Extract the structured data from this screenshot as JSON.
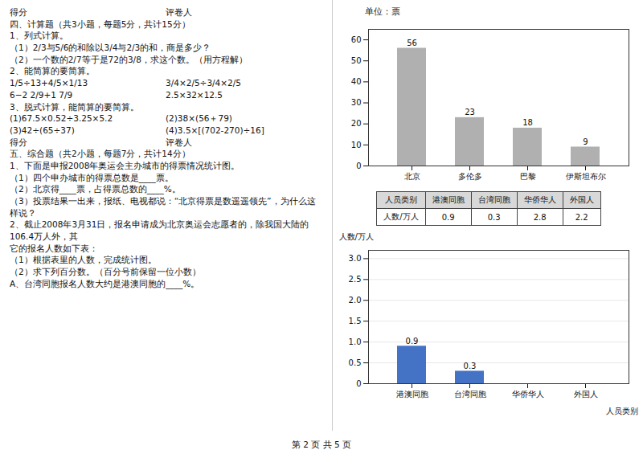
{
  "chart_data": [
    {
      "type": "bar",
      "title": "单位：票",
      "categories": [
        "北京",
        "多伦多",
        "巴黎",
        "伊斯坦布尔"
      ],
      "values": [
        56,
        23,
        18,
        9
      ],
      "color": "#b0b0b0",
      "ylim": [
        0,
        65
      ],
      "yticks": [
        0,
        10,
        20,
        30,
        40,
        50,
        60
      ],
      "data_labels": true,
      "grid": false
    },
    {
      "type": "table",
      "columns": [
        "人员类别",
        "港澳同胞",
        "台湾同胞",
        "华侨华人",
        "外国人"
      ],
      "rows": [
        [
          "人数/万人",
          "0.9",
          "0.3",
          "2.8",
          "2.2"
        ]
      ]
    },
    {
      "type": "bar",
      "ylabel": "人数/万人",
      "xlabel": "人员类别",
      "categories": [
        "港澳同胞",
        "台湾同胞",
        "华侨华人",
        "外国人"
      ],
      "values": [
        0.9,
        0.3,
        0,
        0
      ],
      "value_labels": [
        "0.9",
        "0.3",
        null,
        null
      ],
      "color": "#4472c4",
      "ylim": [
        0,
        3.2
      ],
      "yticks": [
        0,
        0.5,
        {
          "value": 1,
          "label": "1.0"
        },
        1.5,
        {
          "value": 2,
          "label": "2.0"
        },
        2.5,
        {
          "value": 3,
          "label": "3.0"
        }
      ],
      "data_labels": true,
      "grid": true
    }
  ],
  "annotations": [
    [
      "得分",
      "评卷人"
    ],
    "四、计算题（共3小题，每题5分，共计15分）",
    "1、列式计算。",
    "（1）2/3与5/6的和除以3/4与2/3的和，商是多少？",
    "（2）一个数的2/7等于是72的3/8，求这个数。（用方程解）",
    "2、能简算的要简算。",
    [
      "1/5÷13+4/5×1/13",
      "3/4×2/5÷3/4×2/5"
    ],
    [
      "6−2 2/9+1 7/9",
      "2.5×32×12.5"
    ],
    "3、脱式计算，能简算的要简算。",
    [
      "(1)67.5×0.52÷3.25×5.2",
      "(2)38×(56＋79)"
    ],
    [
      "(3)42÷(65÷37)",
      "(4)3.5×[(702-270)÷16]"
    ],
    [
      "得分",
      "评卷人"
    ],
    "五、综合题（共2小题，每题7分，共计14分）",
    "1、下面是申报2008年奥运会主办城市的得票情况统计图。",
    "（1）四个申办城市的得票总数是____票。",
    "（2）北京得____票，占得票总数的____%。",
    "（3）投票结果一出来，报纸、电视都说：“北京得票是数遥遥领先”，为什么这样说？",
    "2、截止2008年3月31日，报名申请成为北京奥运会志愿者的，除我国大陆的106.4万人外，其",
    "它的报名人数如下表：",
    "（1）根据表里的人数，完成统计图。",
    "（2）求下列百分数。（百分号前保留一位小数）",
    "A、台湾同胞报名人数大约是港澳同胞的____%。"
  ],
  "footer": "第 2 页 共 5 页"
}
